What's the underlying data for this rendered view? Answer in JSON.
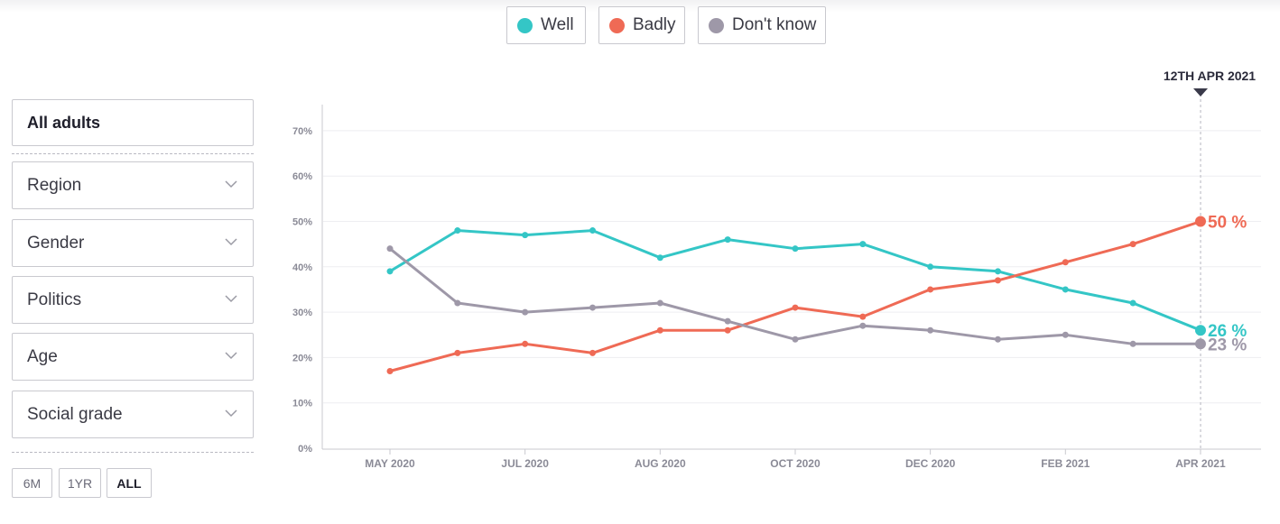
{
  "legend": {
    "items": [
      {
        "label": "Well",
        "color": "#34c6c6"
      },
      {
        "label": "Badly",
        "color": "#ef6a55"
      },
      {
        "label": "Don't know",
        "color": "#9e98a8"
      }
    ]
  },
  "sidebar": {
    "selected": "All adults",
    "filters": [
      "Region",
      "Gender",
      "Politics",
      "Age",
      "Social grade"
    ],
    "ranges": [
      {
        "label": "6M",
        "active": false
      },
      {
        "label": "1YR",
        "active": false
      },
      {
        "label": "ALL",
        "active": true
      }
    ]
  },
  "chart_data": {
    "type": "line",
    "current_date_label": "12TH APR 2021",
    "x_ticks": [
      "MAY 2020",
      "JUL 2020",
      "AUG 2020",
      "OCT 2020",
      "DEC 2020",
      "FEB 2021",
      "APR 2021"
    ],
    "y_ticks": [
      "0%",
      "10%",
      "20%",
      "30%",
      "40%",
      "50%",
      "60%",
      "70%"
    ],
    "ylim": [
      0,
      70
    ],
    "grid": true,
    "points": 13,
    "series": [
      {
        "name": "Well",
        "color": "#34c6c6",
        "values": [
          39,
          48,
          47,
          48,
          42,
          46,
          44,
          45,
          40,
          39,
          35,
          32,
          26
        ],
        "end_label": "26 %"
      },
      {
        "name": "Badly",
        "color": "#ef6a55",
        "values": [
          17,
          21,
          23,
          21,
          26,
          26,
          31,
          29,
          35,
          37,
          41,
          45,
          50
        ],
        "end_label": "50 %"
      },
      {
        "name": "Don't know",
        "color": "#9e98a8",
        "values": [
          44,
          32,
          30,
          31,
          32,
          28,
          24,
          27,
          26,
          24,
          25,
          23,
          23
        ],
        "end_label": "23 %"
      }
    ]
  }
}
